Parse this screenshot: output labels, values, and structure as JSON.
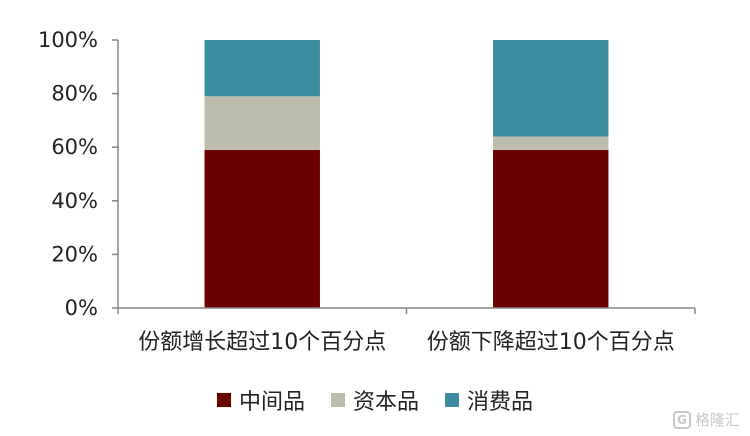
{
  "chart_data": {
    "type": "bar",
    "stacked": true,
    "categories": [
      "份额增长超过10个百分点",
      "份额下降超过10个百分点"
    ],
    "series": [
      {
        "name": "中间品",
        "values": [
          59,
          59
        ],
        "color": "#6B0000"
      },
      {
        "name": "资本品",
        "values": [
          20,
          5
        ],
        "color": "#BDBDAE"
      },
      {
        "name": "消费品",
        "values": [
          21,
          36
        ],
        "color": "#3B8C9E"
      }
    ],
    "ylim": [
      0,
      100
    ],
    "yticks": [
      "0%",
      "20%",
      "40%",
      "60%",
      "80%",
      "100%"
    ],
    "legend_position": "bottom",
    "grid": false
  },
  "watermark": {
    "icon": "G",
    "text": "格隆汇"
  }
}
